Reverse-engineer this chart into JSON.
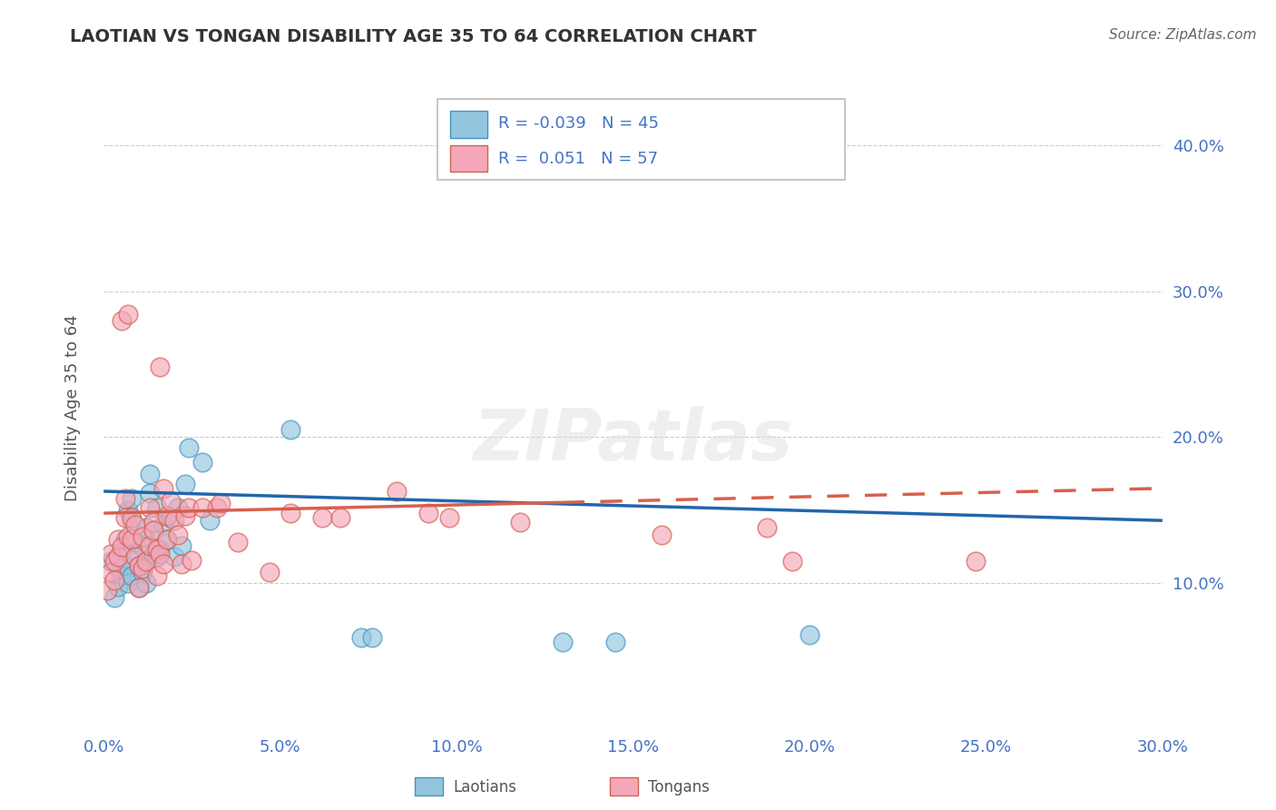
{
  "title": "LAOTIAN VS TONGAN DISABILITY AGE 35 TO 64 CORRELATION CHART",
  "source": "Source: ZipAtlas.com",
  "ylabel_label": "Disability Age 35 to 64",
  "xlim": [
    0.0,
    0.3
  ],
  "ylim": [
    0.0,
    0.44
  ],
  "xticks": [
    0.0,
    0.05,
    0.1,
    0.15,
    0.2,
    0.25,
    0.3
  ],
  "yticks": [
    0.1,
    0.2,
    0.3,
    0.4
  ],
  "ytick_labels": [
    "10.0%",
    "20.0%",
    "30.0%",
    "40.0%"
  ],
  "xtick_labels": [
    "0.0%",
    "5.0%",
    "10.0%",
    "15.0%",
    "20.0%",
    "25.0%",
    "30.0%"
  ],
  "blue_R": -0.039,
  "blue_N": 45,
  "pink_R": 0.051,
  "pink_N": 57,
  "legend_label_blue": "Laotians",
  "legend_label_pink": "Tongans",
  "blue_color": "#92c5de",
  "pink_color": "#f4a7b9",
  "blue_edge_color": "#4393c3",
  "pink_edge_color": "#d6604d",
  "blue_line_color": "#2166ac",
  "pink_line_color": "#d6604d",
  "blue_line_start_y": 0.163,
  "blue_line_end_y": 0.143,
  "pink_line_start_y": 0.148,
  "pink_line_end_y": 0.165,
  "pink_dash_split": 0.13,
  "blue_scatter": [
    [
      0.002,
      0.115
    ],
    [
      0.003,
      0.09
    ],
    [
      0.004,
      0.098
    ],
    [
      0.004,
      0.11
    ],
    [
      0.005,
      0.105
    ],
    [
      0.005,
      0.122
    ],
    [
      0.006,
      0.13
    ],
    [
      0.006,
      0.112
    ],
    [
      0.007,
      0.15
    ],
    [
      0.007,
      0.1
    ],
    [
      0.008,
      0.158
    ],
    [
      0.008,
      0.143
    ],
    [
      0.008,
      0.105
    ],
    [
      0.009,
      0.118
    ],
    [
      0.009,
      0.128
    ],
    [
      0.01,
      0.097
    ],
    [
      0.01,
      0.112
    ],
    [
      0.011,
      0.125
    ],
    [
      0.011,
      0.108
    ],
    [
      0.012,
      0.138
    ],
    [
      0.012,
      0.115
    ],
    [
      0.012,
      0.1
    ],
    [
      0.013,
      0.162
    ],
    [
      0.013,
      0.175
    ],
    [
      0.014,
      0.12
    ],
    [
      0.014,
      0.136
    ],
    [
      0.015,
      0.152
    ],
    [
      0.015,
      0.118
    ],
    [
      0.016,
      0.123
    ],
    [
      0.017,
      0.14
    ],
    [
      0.018,
      0.13
    ],
    [
      0.019,
      0.145
    ],
    [
      0.02,
      0.118
    ],
    [
      0.021,
      0.152
    ],
    [
      0.022,
      0.126
    ],
    [
      0.023,
      0.168
    ],
    [
      0.024,
      0.193
    ],
    [
      0.028,
      0.183
    ],
    [
      0.03,
      0.143
    ],
    [
      0.053,
      0.205
    ],
    [
      0.073,
      0.063
    ],
    [
      0.076,
      0.063
    ],
    [
      0.13,
      0.06
    ],
    [
      0.145,
      0.06
    ],
    [
      0.2,
      0.065
    ]
  ],
  "pink_scatter": [
    [
      0.001,
      0.095
    ],
    [
      0.002,
      0.108
    ],
    [
      0.002,
      0.12
    ],
    [
      0.003,
      0.102
    ],
    [
      0.003,
      0.115
    ],
    [
      0.004,
      0.118
    ],
    [
      0.004,
      0.13
    ],
    [
      0.005,
      0.125
    ],
    [
      0.005,
      0.28
    ],
    [
      0.006,
      0.145
    ],
    [
      0.006,
      0.158
    ],
    [
      0.007,
      0.132
    ],
    [
      0.007,
      0.284
    ],
    [
      0.008,
      0.145
    ],
    [
      0.008,
      0.13
    ],
    [
      0.009,
      0.118
    ],
    [
      0.009,
      0.14
    ],
    [
      0.01,
      0.112
    ],
    [
      0.01,
      0.097
    ],
    [
      0.011,
      0.132
    ],
    [
      0.011,
      0.11
    ],
    [
      0.012,
      0.115
    ],
    [
      0.013,
      0.152
    ],
    [
      0.013,
      0.126
    ],
    [
      0.014,
      0.142
    ],
    [
      0.014,
      0.136
    ],
    [
      0.015,
      0.123
    ],
    [
      0.015,
      0.105
    ],
    [
      0.016,
      0.248
    ],
    [
      0.016,
      0.12
    ],
    [
      0.017,
      0.165
    ],
    [
      0.017,
      0.113
    ],
    [
      0.018,
      0.146
    ],
    [
      0.018,
      0.13
    ],
    [
      0.019,
      0.156
    ],
    [
      0.02,
      0.143
    ],
    [
      0.021,
      0.133
    ],
    [
      0.022,
      0.113
    ],
    [
      0.023,
      0.146
    ],
    [
      0.024,
      0.152
    ],
    [
      0.025,
      0.116
    ],
    [
      0.028,
      0.152
    ],
    [
      0.032,
      0.152
    ],
    [
      0.033,
      0.155
    ],
    [
      0.038,
      0.128
    ],
    [
      0.047,
      0.108
    ],
    [
      0.053,
      0.148
    ],
    [
      0.062,
      0.145
    ],
    [
      0.067,
      0.145
    ],
    [
      0.083,
      0.163
    ],
    [
      0.092,
      0.148
    ],
    [
      0.098,
      0.145
    ],
    [
      0.118,
      0.142
    ],
    [
      0.158,
      0.133
    ],
    [
      0.188,
      0.138
    ],
    [
      0.195,
      0.115
    ],
    [
      0.247,
      0.115
    ]
  ]
}
